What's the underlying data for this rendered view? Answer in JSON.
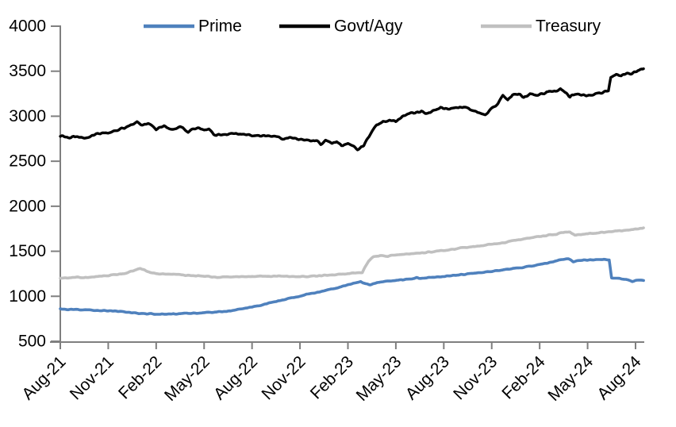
{
  "chart_data": {
    "type": "line",
    "title": "",
    "xlabel": "",
    "ylabel": "",
    "ylim": [
      500,
      4000
    ],
    "y_ticks": [
      500,
      1000,
      1500,
      2000,
      2500,
      3000,
      3500,
      4000
    ],
    "x_tick_labels": [
      "Aug-21",
      "Nov-21",
      "Feb-22",
      "May-22",
      "Aug-22",
      "Nov-22",
      "Feb-23",
      "May-23",
      "Aug-23",
      "Nov-23",
      "Feb-24",
      "May-24",
      "Aug-24"
    ],
    "x_tick_months": [
      0,
      3,
      6,
      9,
      12,
      15,
      18,
      21,
      24,
      27,
      30,
      33,
      36
    ],
    "grid": false,
    "legend_position": "top",
    "axis_color": "#7f7f7f",
    "text_color": "#000000",
    "series": [
      {
        "name": "Prime",
        "color": "#4f81bd",
        "stroke_width": 3.6,
        "noise_amp": 6,
        "points": [
          [
            0,
            858
          ],
          [
            0.5,
            852
          ],
          [
            1,
            850
          ],
          [
            1.5,
            848
          ],
          [
            2,
            846
          ],
          [
            2.5,
            842
          ],
          [
            3,
            840
          ],
          [
            3.5,
            834
          ],
          [
            4,
            827
          ],
          [
            4.5,
            818
          ],
          [
            5,
            810
          ],
          [
            5.5,
            805
          ],
          [
            6,
            802
          ],
          [
            6.5,
            800
          ],
          [
            7,
            802
          ],
          [
            7.5,
            805
          ],
          [
            8,
            810
          ],
          [
            8.5,
            814
          ],
          [
            9,
            818
          ],
          [
            9.5,
            822
          ],
          [
            10,
            828
          ],
          [
            10.5,
            836
          ],
          [
            11,
            848
          ],
          [
            11.5,
            862
          ],
          [
            12,
            880
          ],
          [
            12.5,
            900
          ],
          [
            13,
            922
          ],
          [
            13.5,
            942
          ],
          [
            14,
            962
          ],
          [
            14.5,
            982
          ],
          [
            15,
            1002
          ],
          [
            15.5,
            1022
          ],
          [
            16,
            1042
          ],
          [
            16.5,
            1062
          ],
          [
            17,
            1082
          ],
          [
            17.5,
            1104
          ],
          [
            18,
            1125
          ],
          [
            18.4,
            1148
          ],
          [
            18.8,
            1165
          ],
          [
            19.1,
            1138
          ],
          [
            19.4,
            1128
          ],
          [
            19.8,
            1150
          ],
          [
            20.2,
            1160
          ],
          [
            20.6,
            1170
          ],
          [
            21,
            1178
          ],
          [
            21.5,
            1185
          ],
          [
            22,
            1192
          ],
          [
            22.3,
            1204
          ],
          [
            22.6,
            1197
          ],
          [
            23,
            1207
          ],
          [
            23.5,
            1214
          ],
          [
            24,
            1218
          ],
          [
            24.5,
            1228
          ],
          [
            25,
            1238
          ],
          [
            25.5,
            1248
          ],
          [
            26,
            1258
          ],
          [
            26.5,
            1268
          ],
          [
            27,
            1278
          ],
          [
            27.5,
            1288
          ],
          [
            28,
            1298
          ],
          [
            28.5,
            1310
          ],
          [
            29,
            1322
          ],
          [
            29.5,
            1337
          ],
          [
            30,
            1354
          ],
          [
            30.5,
            1372
          ],
          [
            31,
            1392
          ],
          [
            31.4,
            1408
          ],
          [
            31.8,
            1418
          ],
          [
            32.1,
            1385
          ],
          [
            32.4,
            1397
          ],
          [
            33,
            1402
          ],
          [
            33.5,
            1407
          ],
          [
            34,
            1411
          ],
          [
            34.35,
            1402
          ],
          [
            34.5,
            1205
          ],
          [
            35,
            1197
          ],
          [
            35.4,
            1187
          ],
          [
            35.8,
            1164
          ],
          [
            36.1,
            1180
          ],
          [
            36.5,
            1175
          ]
        ]
      },
      {
        "name": "Govt/Agy",
        "color": "#000000",
        "stroke_width": 3.4,
        "noise_amp": 15,
        "points": [
          [
            0,
            2780
          ],
          [
            0.5,
            2763
          ],
          [
            1,
            2775
          ],
          [
            1.5,
            2755
          ],
          [
            2,
            2790
          ],
          [
            2.5,
            2803
          ],
          [
            3,
            2818
          ],
          [
            3.5,
            2843
          ],
          [
            4,
            2868
          ],
          [
            4.5,
            2908
          ],
          [
            4.8,
            2935
          ],
          [
            5.2,
            2898
          ],
          [
            5.5,
            2918
          ],
          [
            6,
            2858
          ],
          [
            6.5,
            2888
          ],
          [
            7,
            2853
          ],
          [
            7.5,
            2886
          ],
          [
            8,
            2830
          ],
          [
            8.3,
            2868
          ],
          [
            8.7,
            2873
          ],
          [
            9,
            2853
          ],
          [
            9.3,
            2858
          ],
          [
            9.6,
            2790
          ],
          [
            10,
            2800
          ],
          [
            10.5,
            2793
          ],
          [
            11,
            2805
          ],
          [
            11.5,
            2798
          ],
          [
            12,
            2793
          ],
          [
            12.5,
            2783
          ],
          [
            13,
            2778
          ],
          [
            13.5,
            2768
          ],
          [
            14,
            2753
          ],
          [
            14.5,
            2758
          ],
          [
            15,
            2738
          ],
          [
            15.5,
            2733
          ],
          [
            16,
            2728
          ],
          [
            16.3,
            2693
          ],
          [
            16.6,
            2728
          ],
          [
            17,
            2698
          ],
          [
            17.3,
            2718
          ],
          [
            17.6,
            2678
          ],
          [
            18,
            2688
          ],
          [
            18.3,
            2663
          ],
          [
            18.6,
            2638
          ],
          [
            19,
            2678
          ],
          [
            19.4,
            2798
          ],
          [
            19.8,
            2903
          ],
          [
            20.2,
            2938
          ],
          [
            20.6,
            2958
          ],
          [
            21,
            2943
          ],
          [
            21.4,
            2998
          ],
          [
            21.8,
            3028
          ],
          [
            22.2,
            3043
          ],
          [
            22.6,
            3053
          ],
          [
            23,
            3028
          ],
          [
            23.4,
            3068
          ],
          [
            23.8,
            3098
          ],
          [
            24.2,
            3078
          ],
          [
            24.6,
            3088
          ],
          [
            25,
            3098
          ],
          [
            25.4,
            3103
          ],
          [
            25.8,
            3063
          ],
          [
            26.2,
            3038
          ],
          [
            26.6,
            3013
          ],
          [
            27,
            3088
          ],
          [
            27.4,
            3138
          ],
          [
            27.7,
            3223
          ],
          [
            28,
            3178
          ],
          [
            28.3,
            3238
          ],
          [
            28.7,
            3248
          ],
          [
            29,
            3208
          ],
          [
            29.4,
            3248
          ],
          [
            29.8,
            3238
          ],
          [
            30.2,
            3248
          ],
          [
            30.6,
            3278
          ],
          [
            31,
            3268
          ],
          [
            31.3,
            3308
          ],
          [
            31.6,
            3258
          ],
          [
            31.9,
            3218
          ],
          [
            32.2,
            3248
          ],
          [
            32.6,
            3233
          ],
          [
            33,
            3238
          ],
          [
            33.4,
            3248
          ],
          [
            33.8,
            3253
          ],
          [
            34.1,
            3278
          ],
          [
            34.3,
            3288
          ],
          [
            34.45,
            3435
          ],
          [
            34.8,
            3468
          ],
          [
            35.1,
            3448
          ],
          [
            35.4,
            3478
          ],
          [
            35.7,
            3463
          ],
          [
            36,
            3498
          ],
          [
            36.3,
            3518
          ],
          [
            36.5,
            3522
          ]
        ]
      },
      {
        "name": "Treasury",
        "color": "#c0c0c0",
        "stroke_width": 3.6,
        "noise_amp": 7,
        "points": [
          [
            0,
            1205
          ],
          [
            0.5,
            1200
          ],
          [
            1,
            1210
          ],
          [
            1.5,
            1205
          ],
          [
            2,
            1218
          ],
          [
            2.5,
            1224
          ],
          [
            3,
            1230
          ],
          [
            3.5,
            1240
          ],
          [
            4,
            1254
          ],
          [
            4.5,
            1278
          ],
          [
            5,
            1305
          ],
          [
            5.3,
            1290
          ],
          [
            5.6,
            1265
          ],
          [
            6,
            1254
          ],
          [
            6.5,
            1248
          ],
          [
            7,
            1242
          ],
          [
            7.5,
            1238
          ],
          [
            8,
            1232
          ],
          [
            8.5,
            1226
          ],
          [
            9,
            1222
          ],
          [
            9.5,
            1215
          ],
          [
            10,
            1212
          ],
          [
            10.5,
            1215
          ],
          [
            11,
            1218
          ],
          [
            11.5,
            1216
          ],
          [
            12,
            1220
          ],
          [
            12.5,
            1222
          ],
          [
            13,
            1220
          ],
          [
            13.5,
            1224
          ],
          [
            14,
            1222
          ],
          [
            14.5,
            1220
          ],
          [
            15,
            1218
          ],
          [
            15.5,
            1222
          ],
          [
            16,
            1226
          ],
          [
            16.5,
            1230
          ],
          [
            17,
            1238
          ],
          [
            17.5,
            1244
          ],
          [
            18,
            1252
          ],
          [
            18.5,
            1258
          ],
          [
            18.9,
            1262
          ],
          [
            19.3,
            1395
          ],
          [
            19.6,
            1440
          ],
          [
            20,
            1448
          ],
          [
            20.5,
            1444
          ],
          [
            21,
            1458
          ],
          [
            21.5,
            1464
          ],
          [
            22,
            1471
          ],
          [
            22.5,
            1477
          ],
          [
            23,
            1489
          ],
          [
            23.5,
            1499
          ],
          [
            24,
            1511
          ],
          [
            24.5,
            1521
          ],
          [
            25,
            1534
          ],
          [
            25.5,
            1544
          ],
          [
            26,
            1554
          ],
          [
            26.5,
            1564
          ],
          [
            27,
            1577
          ],
          [
            27.5,
            1589
          ],
          [
            28,
            1604
          ],
          [
            28.5,
            1619
          ],
          [
            29,
            1637
          ],
          [
            29.5,
            1651
          ],
          [
            30,
            1664
          ],
          [
            30.5,
            1677
          ],
          [
            31,
            1689
          ],
          [
            31.5,
            1710
          ],
          [
            31.9,
            1714
          ],
          [
            32.2,
            1678
          ],
          [
            32.5,
            1687
          ],
          [
            33,
            1694
          ],
          [
            33.5,
            1701
          ],
          [
            34,
            1711
          ],
          [
            34.5,
            1719
          ],
          [
            35,
            1727
          ],
          [
            35.5,
            1737
          ],
          [
            36,
            1747
          ],
          [
            36.5,
            1757
          ]
        ]
      }
    ]
  }
}
